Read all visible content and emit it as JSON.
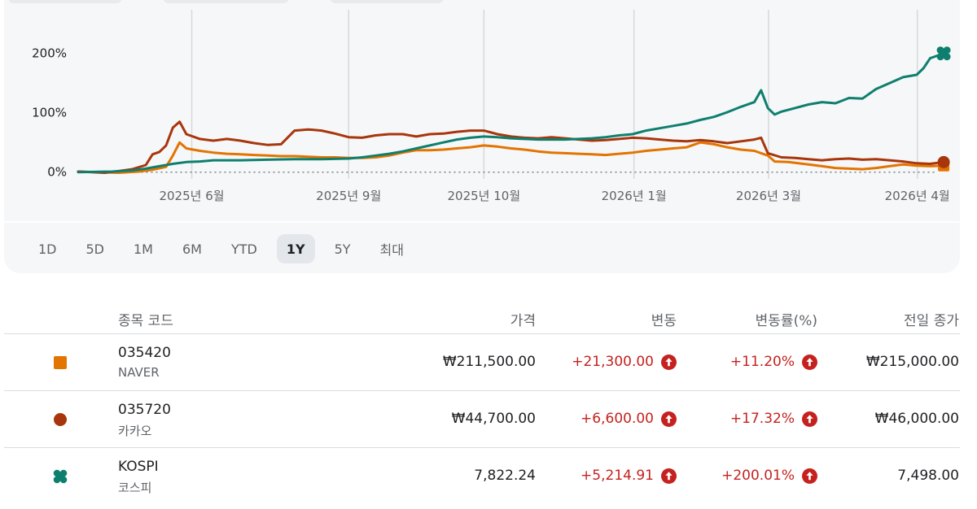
{
  "range_buttons": [
    "1D",
    "5D",
    "1M",
    "6M",
    "YTD",
    "1Y",
    "5Y",
    "최대"
  ],
  "active_range": "1Y",
  "table": {
    "headers": {
      "symbol": "종목 코드",
      "price": "가격",
      "change": "변동",
      "change_pct": "변동률(%)",
      "prev_close": "전일 종가"
    },
    "rows": [
      {
        "symbol": "035420",
        "name": "NAVER",
        "price": "₩211,500.00",
        "change": "+21,300.00",
        "change_pct": "+11.20%",
        "prev_close": "₩215,000.00",
        "marker": "square",
        "color": "#e37400"
      },
      {
        "symbol": "035720",
        "name": "카카오",
        "price": "₩44,700.00",
        "change": "+6,600.00",
        "change_pct": "+17.32%",
        "prev_close": "₩46,000.00",
        "marker": "circle",
        "color": "#a8360c"
      },
      {
        "symbol": "KOSPI",
        "name": "코스피",
        "price": "7,822.24",
        "change": "+5,214.91",
        "change_pct": "+200.01%",
        "prev_close": "7,498.00",
        "marker": "flower",
        "color": "#0e7f6e"
      }
    ]
  },
  "colors": {
    "up": "#c5221f",
    "naver": "#e37400",
    "kakao": "#a8360c",
    "kospi": "#0e7f6e"
  },
  "chart_data": {
    "type": "line",
    "y_tick_labels": [
      "200%",
      "100%",
      "0%"
    ],
    "y_ticks": [
      200,
      100,
      0
    ],
    "ylim": [
      -25,
      290
    ],
    "x_tick_labels": [
      "2025년 6월",
      "2025년 9월",
      "2025년 10월",
      "2026년 1월",
      "2026년 3월",
      "2026년 4월"
    ],
    "x_ticks": [
      0.168,
      0.4,
      0.6,
      0.822,
      1.021,
      1.241
    ],
    "xlim": [
      0,
      1.31
    ],
    "grid": "vertical-at-ticks",
    "baseline": "dotted-at-0",
    "series": [
      {
        "name": "035420",
        "color": "#e37400",
        "end_marker": "square",
        "points": [
          [
            0,
            1
          ],
          [
            0.03,
            0
          ],
          [
            0.06,
            -1
          ],
          [
            0.09,
            1
          ],
          [
            0.11,
            4
          ],
          [
            0.13,
            9
          ],
          [
            0.14,
            28
          ],
          [
            0.15,
            50
          ],
          [
            0.16,
            40
          ],
          [
            0.18,
            36
          ],
          [
            0.2,
            33
          ],
          [
            0.22,
            31
          ],
          [
            0.24,
            30
          ],
          [
            0.26,
            29
          ],
          [
            0.28,
            28
          ],
          [
            0.3,
            27
          ],
          [
            0.32,
            27
          ],
          [
            0.34,
            26
          ],
          [
            0.36,
            25
          ],
          [
            0.38,
            25
          ],
          [
            0.4,
            24
          ],
          [
            0.42,
            24
          ],
          [
            0.44,
            25
          ],
          [
            0.46,
            28
          ],
          [
            0.48,
            33
          ],
          [
            0.5,
            37
          ],
          [
            0.52,
            37
          ],
          [
            0.54,
            38
          ],
          [
            0.56,
            40
          ],
          [
            0.58,
            42
          ],
          [
            0.6,
            45
          ],
          [
            0.62,
            43
          ],
          [
            0.64,
            40
          ],
          [
            0.66,
            38
          ],
          [
            0.68,
            35
          ],
          [
            0.7,
            33
          ],
          [
            0.72,
            32
          ],
          [
            0.74,
            31
          ],
          [
            0.76,
            30
          ],
          [
            0.78,
            29
          ],
          [
            0.8,
            31
          ],
          [
            0.82,
            33
          ],
          [
            0.84,
            36
          ],
          [
            0.86,
            38
          ],
          [
            0.88,
            40
          ],
          [
            0.9,
            42
          ],
          [
            0.92,
            50
          ],
          [
            0.94,
            47
          ],
          [
            0.96,
            42
          ],
          [
            0.98,
            38
          ],
          [
            1.0,
            36
          ],
          [
            1.02,
            28
          ],
          [
            1.03,
            18
          ],
          [
            1.05,
            17
          ],
          [
            1.08,
            13
          ],
          [
            1.1,
            10
          ],
          [
            1.12,
            7
          ],
          [
            1.14,
            6
          ],
          [
            1.16,
            5
          ],
          [
            1.18,
            7
          ],
          [
            1.2,
            10
          ],
          [
            1.22,
            13
          ],
          [
            1.24,
            11
          ],
          [
            1.26,
            10
          ],
          [
            1.28,
            11
          ]
        ]
      },
      {
        "name": "035720",
        "color": "#a8360c",
        "end_marker": "circle",
        "points": [
          [
            0,
            1
          ],
          [
            0.02,
            0
          ],
          [
            0.04,
            -1
          ],
          [
            0.06,
            2
          ],
          [
            0.08,
            5
          ],
          [
            0.1,
            12
          ],
          [
            0.11,
            30
          ],
          [
            0.12,
            34
          ],
          [
            0.13,
            45
          ],
          [
            0.14,
            75
          ],
          [
            0.15,
            85
          ],
          [
            0.16,
            64
          ],
          [
            0.18,
            56
          ],
          [
            0.2,
            53
          ],
          [
            0.22,
            56
          ],
          [
            0.24,
            53
          ],
          [
            0.26,
            49
          ],
          [
            0.28,
            46
          ],
          [
            0.3,
            47
          ],
          [
            0.32,
            70
          ],
          [
            0.34,
            72
          ],
          [
            0.36,
            70
          ],
          [
            0.38,
            65
          ],
          [
            0.4,
            59
          ],
          [
            0.42,
            58
          ],
          [
            0.44,
            62
          ],
          [
            0.46,
            64
          ],
          [
            0.48,
            64
          ],
          [
            0.5,
            60
          ],
          [
            0.52,
            64
          ],
          [
            0.54,
            65
          ],
          [
            0.56,
            68
          ],
          [
            0.58,
            70
          ],
          [
            0.6,
            70
          ],
          [
            0.62,
            64
          ],
          [
            0.64,
            60
          ],
          [
            0.66,
            58
          ],
          [
            0.68,
            57
          ],
          [
            0.7,
            59
          ],
          [
            0.72,
            57
          ],
          [
            0.74,
            55
          ],
          [
            0.76,
            53
          ],
          [
            0.78,
            54
          ],
          [
            0.8,
            56
          ],
          [
            0.82,
            58
          ],
          [
            0.84,
            57
          ],
          [
            0.86,
            55
          ],
          [
            0.88,
            53
          ],
          [
            0.9,
            52
          ],
          [
            0.92,
            54
          ],
          [
            0.94,
            52
          ],
          [
            0.96,
            49
          ],
          [
            0.98,
            52
          ],
          [
            1.0,
            55
          ],
          [
            1.01,
            58
          ],
          [
            1.02,
            32
          ],
          [
            1.04,
            25
          ],
          [
            1.06,
            24
          ],
          [
            1.08,
            22
          ],
          [
            1.1,
            20
          ],
          [
            1.12,
            22
          ],
          [
            1.14,
            23
          ],
          [
            1.16,
            21
          ],
          [
            1.18,
            22
          ],
          [
            1.2,
            20
          ],
          [
            1.22,
            18
          ],
          [
            1.24,
            15
          ],
          [
            1.26,
            14
          ],
          [
            1.28,
            17
          ]
        ]
      },
      {
        "name": "KOSPI",
        "color": "#0e7f6e",
        "end_marker": "flower",
        "points": [
          [
            0,
            0
          ],
          [
            0.05,
            1
          ],
          [
            0.08,
            3
          ],
          [
            0.1,
            6
          ],
          [
            0.12,
            10
          ],
          [
            0.14,
            14
          ],
          [
            0.16,
            17
          ],
          [
            0.18,
            18
          ],
          [
            0.2,
            20
          ],
          [
            0.24,
            20
          ],
          [
            0.28,
            21
          ],
          [
            0.32,
            22
          ],
          [
            0.36,
            22
          ],
          [
            0.4,
            23
          ],
          [
            0.42,
            25
          ],
          [
            0.44,
            28
          ],
          [
            0.46,
            31
          ],
          [
            0.48,
            35
          ],
          [
            0.5,
            40
          ],
          [
            0.52,
            45
          ],
          [
            0.54,
            50
          ],
          [
            0.56,
            55
          ],
          [
            0.58,
            58
          ],
          [
            0.6,
            60
          ],
          [
            0.62,
            59
          ],
          [
            0.64,
            57
          ],
          [
            0.66,
            56
          ],
          [
            0.68,
            55
          ],
          [
            0.7,
            55
          ],
          [
            0.72,
            55
          ],
          [
            0.74,
            56
          ],
          [
            0.76,
            57
          ],
          [
            0.78,
            59
          ],
          [
            0.8,
            62
          ],
          [
            0.82,
            64
          ],
          [
            0.84,
            70
          ],
          [
            0.86,
            74
          ],
          [
            0.88,
            78
          ],
          [
            0.9,
            82
          ],
          [
            0.92,
            88
          ],
          [
            0.94,
            93
          ],
          [
            0.96,
            101
          ],
          [
            0.98,
            110
          ],
          [
            1.0,
            118
          ],
          [
            1.01,
            138
          ],
          [
            1.02,
            108
          ],
          [
            1.03,
            97
          ],
          [
            1.04,
            102
          ],
          [
            1.06,
            108
          ],
          [
            1.08,
            114
          ],
          [
            1.1,
            118
          ],
          [
            1.12,
            116
          ],
          [
            1.14,
            125
          ],
          [
            1.16,
            124
          ],
          [
            1.18,
            140
          ],
          [
            1.2,
            150
          ],
          [
            1.22,
            160
          ],
          [
            1.24,
            164
          ],
          [
            1.25,
            175
          ],
          [
            1.26,
            192
          ],
          [
            1.28,
            200
          ]
        ]
      }
    ]
  }
}
